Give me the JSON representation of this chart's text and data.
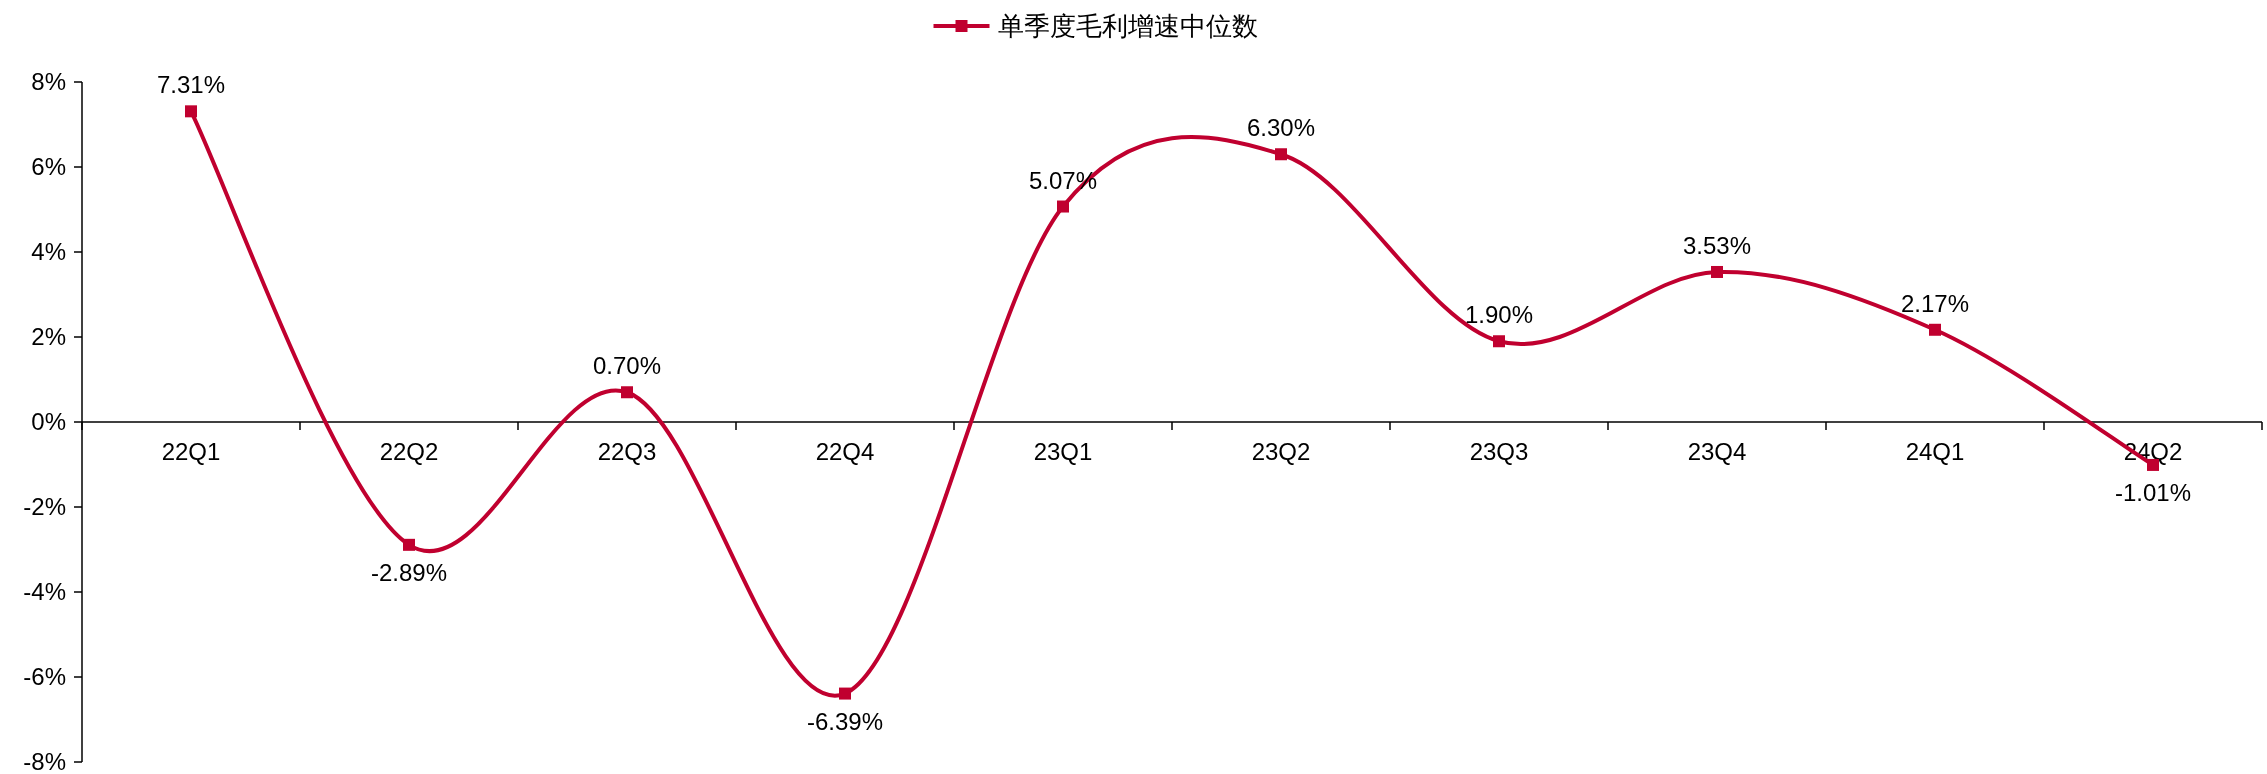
{
  "chart_data": {
    "type": "line",
    "categories": [
      "22Q1",
      "22Q2",
      "22Q3",
      "22Q4",
      "23Q1",
      "23Q2",
      "23Q3",
      "23Q4",
      "24Q1",
      "24Q2"
    ],
    "series": [
      {
        "name": "单季度毛利增速中位数",
        "color": "#c0002f",
        "values": [
          7.31,
          -2.89,
          0.7,
          -6.39,
          5.07,
          6.3,
          1.9,
          3.53,
          2.17,
          -1.01
        ],
        "value_labels": [
          "7.31%",
          "-2.89%",
          "0.70%",
          "-6.39%",
          "5.07%",
          "6.30%",
          "1.90%",
          "3.53%",
          "2.17%",
          "-1.01%"
        ]
      }
    ],
    "ylim": [
      -8,
      8
    ],
    "yticks": [
      {
        "value": 8,
        "label": "8%"
      },
      {
        "value": 6,
        "label": "6%"
      },
      {
        "value": 4,
        "label": "4%"
      },
      {
        "value": 2,
        "label": "2%"
      },
      {
        "value": 0,
        "label": "0%"
      },
      {
        "value": -2,
        "label": "-2%"
      },
      {
        "value": -4,
        "label": "-4%"
      },
      {
        "value": -6,
        "label": "-6%"
      },
      {
        "value": -8,
        "label": "-8%"
      }
    ],
    "legend": "top",
    "marker": "square",
    "line_style": "solid",
    "grid": false
  }
}
